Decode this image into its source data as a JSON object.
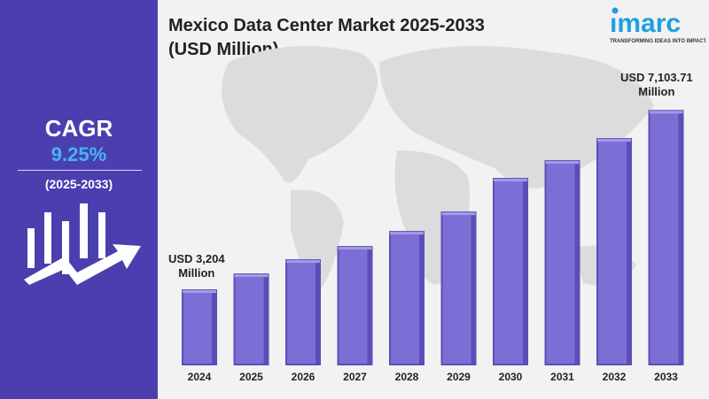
{
  "title_line1": "Mexico Data Center Market 2025-2033",
  "title_line2": "(USD Million)",
  "cagr": {
    "label": "CAGR",
    "value": "9.25%",
    "period": "(2025-2033)"
  },
  "logo": {
    "name": "imarc",
    "tagline": "TRANSFORMING IDEAS INTO IMPACT"
  },
  "colors": {
    "panel": "#4b3fb0",
    "bar": "#7b6fd6",
    "bar_side": "#5a4fb8",
    "cagr_value": "#3fb8f0",
    "logo": "#1ea0e0"
  },
  "chart_data": {
    "type": "bar",
    "title": "Mexico Data Center Market 2025-2033 (USD Million)",
    "categories": [
      "2024",
      "2025",
      "2026",
      "2027",
      "2028",
      "2029",
      "2030",
      "2031",
      "2032",
      "2033"
    ],
    "values": [
      3204,
      3550,
      3858,
      4146,
      4473,
      4896,
      5627,
      6012,
      6492,
      7103.71
    ],
    "annotations": [
      {
        "category": "2024",
        "text1": "USD 3,204",
        "text2": "Million"
      },
      {
        "category": "2033",
        "text1": "USD 7,103.71",
        "text2": "Million"
      }
    ],
    "grid": false,
    "background": "world-map"
  }
}
